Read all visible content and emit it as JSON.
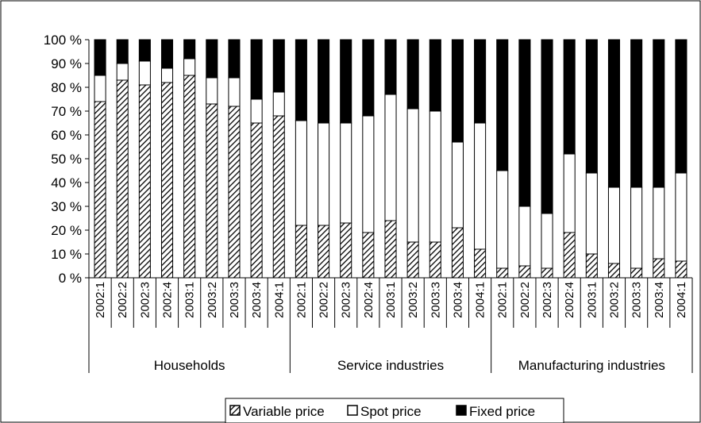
{
  "chart_data": {
    "type": "bar",
    "stacked": true,
    "percent_stacked": true,
    "groups": [
      {
        "label": "Households",
        "categories": [
          "2002:1",
          "2002:2",
          "2002:3",
          "2002:4",
          "2003:1",
          "2003:2",
          "2003:3",
          "2003:4",
          "2004:1"
        ]
      },
      {
        "label": "Service industries",
        "categories": [
          "2002:1",
          "2002:2",
          "2002:3",
          "2002:4",
          "2003:1",
          "2003:2",
          "2003:3",
          "2003:4",
          "2004:1"
        ]
      },
      {
        "label": "Manufacturing industries",
        "categories": [
          "2002:1",
          "2002:2",
          "2002:3",
          "2002:4",
          "2003:1",
          "2003:2",
          "2003:3",
          "2003:4",
          "2004:1"
        ]
      }
    ],
    "series": [
      {
        "name": "Variable price",
        "pattern": "hatched",
        "color": "#000000",
        "values": [
          74,
          83,
          81,
          82,
          85,
          73,
          72,
          65,
          68,
          22,
          22,
          23,
          19,
          24,
          15,
          15,
          21,
          12,
          4,
          5,
          4,
          19,
          10,
          6,
          4,
          8,
          7
        ]
      },
      {
        "name": "Spot price",
        "pattern": "solid",
        "color": "#ffffff",
        "values": [
          11,
          7,
          10,
          6,
          7,
          11,
          12,
          10,
          10,
          44,
          43,
          42,
          49,
          53,
          56,
          55,
          36,
          53,
          41,
          25,
          23,
          33,
          34,
          32,
          34,
          30,
          37
        ]
      },
      {
        "name": "Fixed price",
        "pattern": "solid",
        "color": "#000000",
        "values": [
          15,
          10,
          9,
          12,
          8,
          16,
          16,
          25,
          22,
          34,
          35,
          35,
          32,
          23,
          29,
          30,
          43,
          35,
          55,
          70,
          73,
          48,
          56,
          62,
          62,
          62,
          56
        ]
      }
    ],
    "y_ticks": [
      "0 %",
      "10 %",
      "20 %",
      "30 %",
      "40 %",
      "50 %",
      "60 %",
      "70 %",
      "80 %",
      "90 %",
      "100 %"
    ],
    "ylim": [
      0,
      100
    ],
    "legend_position": "bottom",
    "grid": false
  }
}
